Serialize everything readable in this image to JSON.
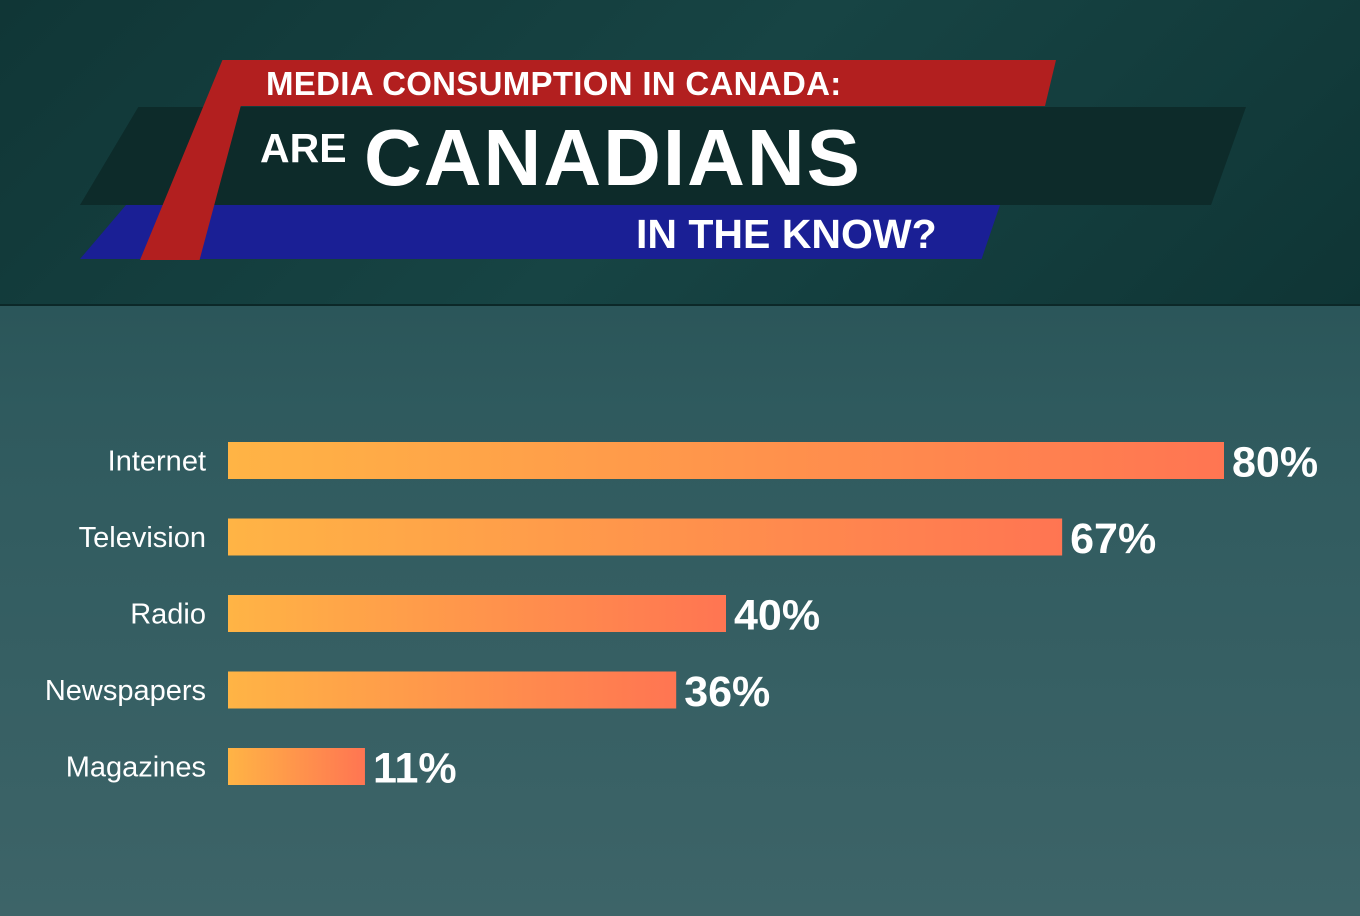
{
  "header": {
    "line1": "MEDIA CONSUMPTION IN CANADA:",
    "line2_small": "ARE",
    "line2_big": "CANADIANS",
    "line3": "IN THE KNOW?"
  },
  "colors": {
    "red_band": "#b21f1f",
    "blue_band": "#1a1f95",
    "bar_gradient_start": "#ffb445",
    "bar_gradient_end": "#ff7552"
  },
  "chart_data": {
    "type": "bar",
    "orientation": "horizontal",
    "categories": [
      "Internet",
      "Television",
      "Radio",
      "Newspapers",
      "Magazines"
    ],
    "values": [
      80,
      67,
      40,
      36,
      11
    ],
    "value_labels": [
      "80%",
      "67%",
      "40%",
      "36%",
      "11%"
    ],
    "unit": "%",
    "xlim": [
      0,
      80
    ],
    "grid": false,
    "title": "",
    "xlabel": "",
    "ylabel": ""
  }
}
